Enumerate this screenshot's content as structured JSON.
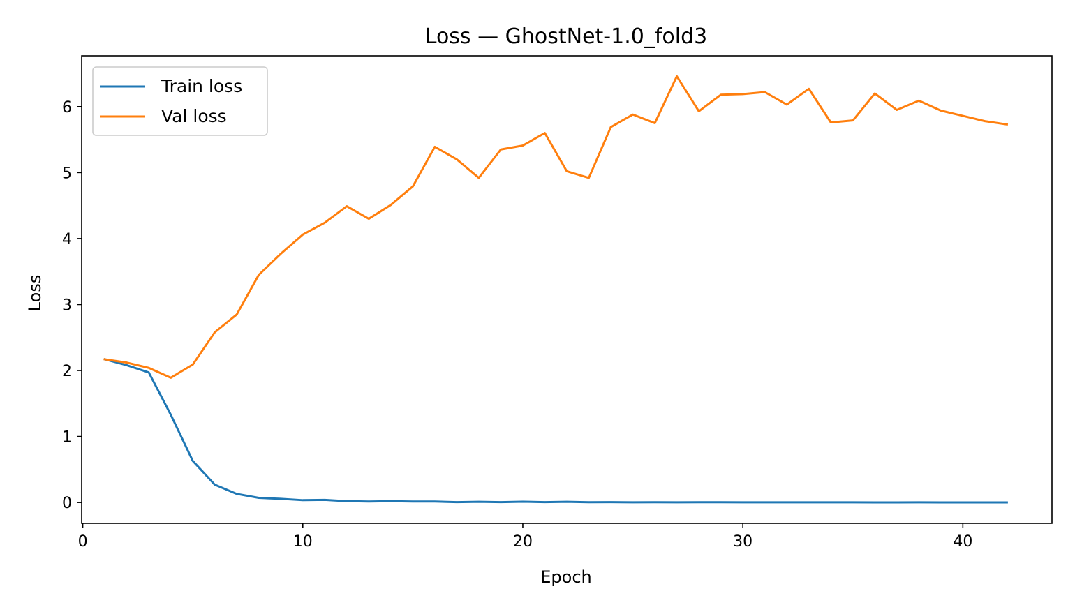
{
  "chart_data": {
    "type": "line",
    "title": "Loss — GhostNet-1.0_fold3",
    "xlabel": "Epoch",
    "ylabel": "Loss",
    "xlim": [
      -0.05,
      44.05
    ],
    "ylim": [
      -0.316,
      6.77
    ],
    "xticks": [
      0,
      10,
      20,
      30,
      40
    ],
    "yticks": [
      0,
      1,
      2,
      3,
      4,
      5,
      6
    ],
    "grid": false,
    "legend": "upper left",
    "x": [
      1,
      2,
      3,
      4,
      5,
      6,
      7,
      8,
      9,
      10,
      11,
      12,
      13,
      14,
      15,
      16,
      17,
      18,
      19,
      20,
      21,
      22,
      23,
      24,
      25,
      26,
      27,
      28,
      29,
      30,
      31,
      32,
      33,
      34,
      35,
      36,
      37,
      38,
      39,
      40,
      41,
      42
    ],
    "series": [
      {
        "name": "Train loss",
        "color": "#1f77b4",
        "values": [
          2.17,
          2.08,
          1.97,
          1.33,
          0.63,
          0.27,
          0.13,
          0.07,
          0.055,
          0.035,
          0.04,
          0.02,
          0.015,
          0.02,
          0.015,
          0.015,
          0.005,
          0.01,
          0.005,
          0.012,
          0.005,
          0.01,
          0.004,
          0.005,
          0.003,
          0.004,
          0.002,
          0.004,
          0.004,
          0.003,
          0.002,
          0.003,
          0.003,
          0.002,
          0.002,
          0.001,
          0.001,
          0.002,
          0.001,
          0.001,
          0.001,
          0.001
        ]
      },
      {
        "name": "Val loss",
        "color": "#ff7f0e",
        "values": [
          2.17,
          2.12,
          2.04,
          1.89,
          2.09,
          2.58,
          2.85,
          3.45,
          3.77,
          4.06,
          4.24,
          4.49,
          4.3,
          4.51,
          4.79,
          5.39,
          5.2,
          4.92,
          5.35,
          5.41,
          5.6,
          5.02,
          4.92,
          5.69,
          5.88,
          5.75,
          6.46,
          5.93,
          6.18,
          6.19,
          6.22,
          6.03,
          6.27,
          5.76,
          5.79,
          6.2,
          5.95,
          6.09,
          5.94,
          5.86,
          5.78,
          5.73
        ]
      }
    ]
  }
}
